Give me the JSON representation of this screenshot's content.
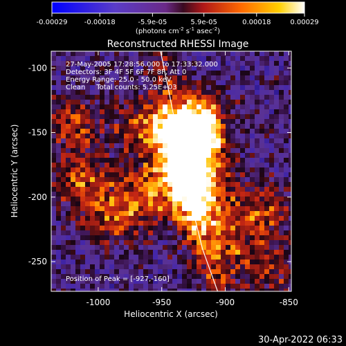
{
  "colorbar": {
    "tick_labels": [
      "-0.00029",
      "-0.00018",
      "-5.9e-05",
      "5.9e-05",
      "0.00018",
      "0.00029"
    ],
    "tick_values": [
      -0.00029,
      -0.00018,
      -5.9e-05,
      5.9e-05,
      0.00018,
      0.00029
    ],
    "range": [
      -0.00029,
      0.00029
    ],
    "units_prefix": "(photons cm",
    "units_sup1": "-2",
    "units_mid": " s",
    "units_sup2": "-1",
    "units_post": " asec",
    "units_sup3": "-2",
    "units_close": ")",
    "colormap": "blue-purple-red-orange-yellow-white"
  },
  "image": {
    "title": "Reconstructed RHESSI Image",
    "info_lines": [
      "27-May-2005 17:28:56.000 to 17:33:32.000",
      "Detectors: 3F 4F 5F 6F 7F 8F, Att 0",
      "Energy Range: 25.0 - 50.0 keV",
      "Clean     Total counts: 5.25E+03"
    ],
    "peak_label": "Position of Peak = [-927,-160]",
    "peak_position": [
      -927,
      -160
    ]
  },
  "chart_data": {
    "type": "heatmap",
    "title": "Reconstructed RHESSI Image",
    "xlabel": "Heliocentric X (arcsec)",
    "ylabel": "Heliocentric Y (arcsec)",
    "xlim": [
      -1037,
      -848
    ],
    "ylim": [
      -273,
      -87
    ],
    "x_ticks": [
      -1000,
      -950,
      -900,
      -850
    ],
    "y_ticks": [
      -250,
      -200,
      -150,
      -100
    ],
    "x_tick_labels": [
      "-1000",
      "-950",
      "-900",
      "-850"
    ],
    "y_tick_labels": [
      "-250",
      "-200",
      "-150",
      "-100"
    ],
    "limb_curve": [
      [
        -951,
        -87
      ],
      [
        -944,
        -120
      ],
      [
        -936,
        -160
      ],
      [
        -928,
        -200
      ],
      [
        -918,
        -240
      ],
      [
        -906,
        -273
      ]
    ],
    "hotspots": [
      {
        "x": -927,
        "y": -160,
        "strength": 1.0
      },
      {
        "x": -922,
        "y": -140,
        "strength": 0.75
      },
      {
        "x": -930,
        "y": -185,
        "strength": 0.7
      },
      {
        "x": -918,
        "y": -205,
        "strength": 0.6
      },
      {
        "x": -962,
        "y": -145,
        "strength": 0.55
      },
      {
        "x": -965,
        "y": -200,
        "strength": 0.5
      },
      {
        "x": -1012,
        "y": -190,
        "strength": 0.45
      },
      {
        "x": -1018,
        "y": -145,
        "strength": 0.4
      },
      {
        "x": -902,
        "y": -238,
        "strength": 0.4
      },
      {
        "x": -872,
        "y": -212,
        "strength": 0.45
      },
      {
        "x": -868,
        "y": -258,
        "strength": 0.35
      },
      {
        "x": -990,
        "y": -220,
        "strength": 0.35
      }
    ]
  },
  "footer": {
    "timestamp": "30-Apr-2022 06:33"
  }
}
